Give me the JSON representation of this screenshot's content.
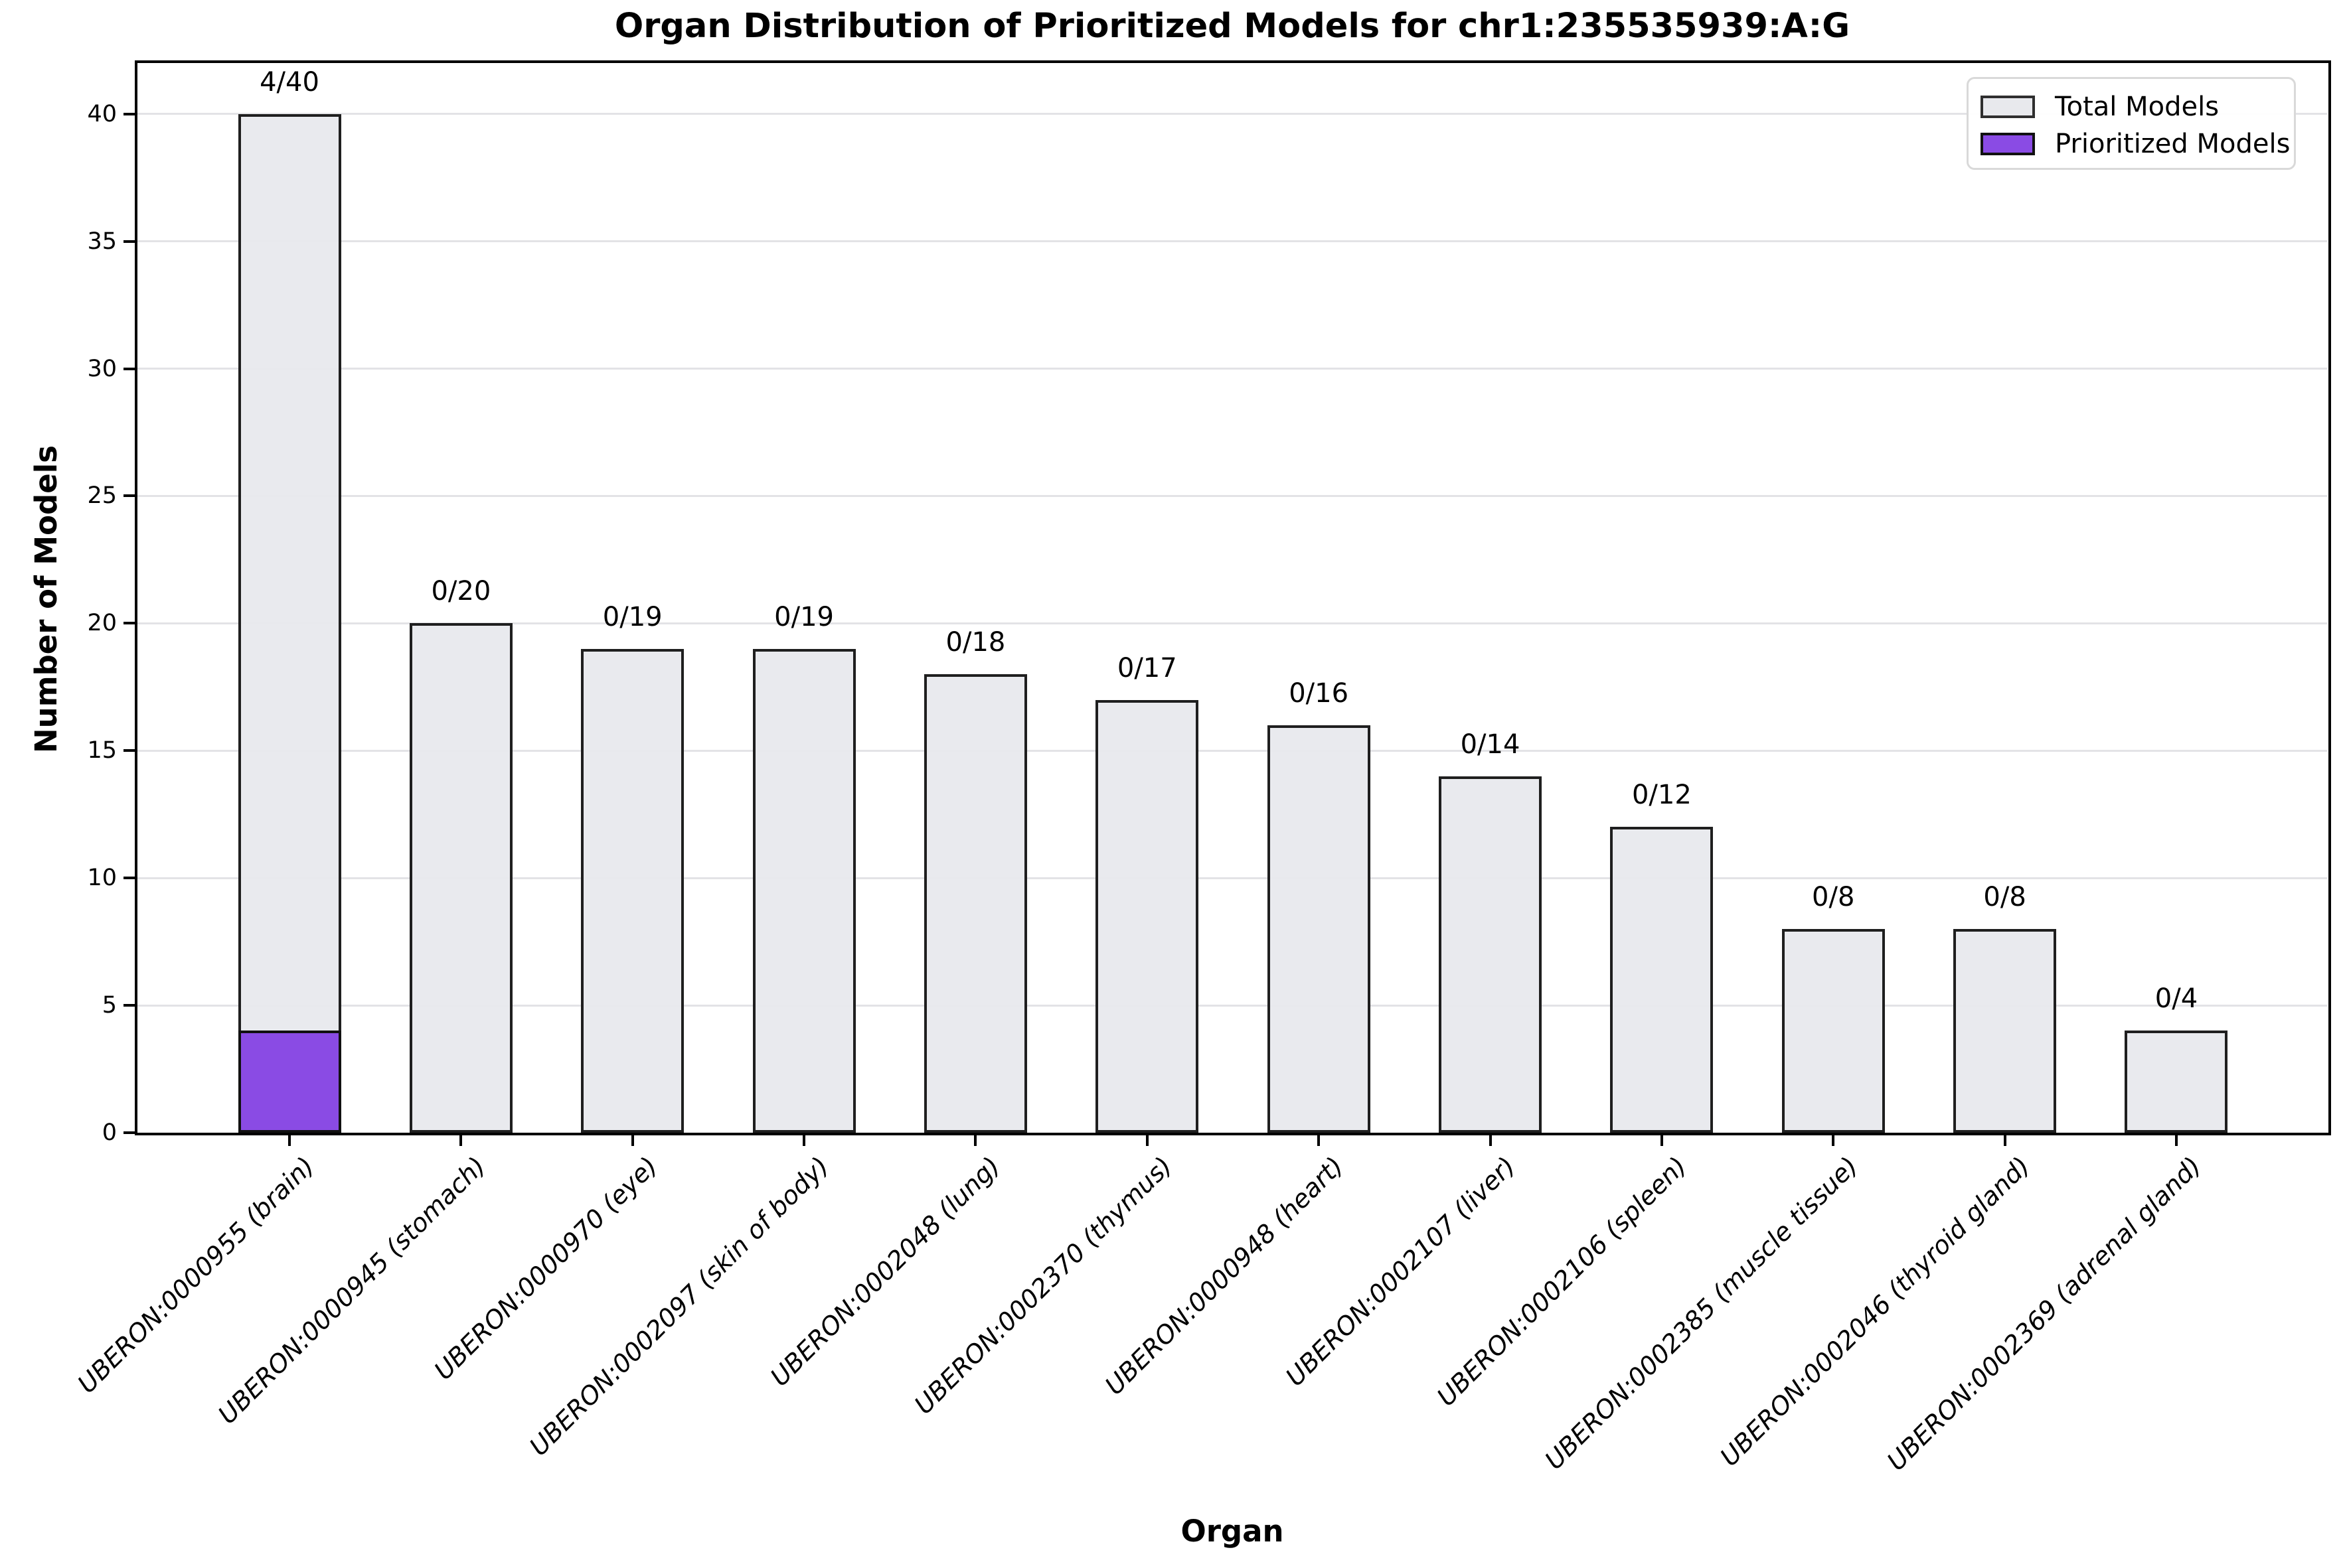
{
  "chart_data": {
    "type": "bar",
    "title": "Organ Distribution of Prioritized Models for chr1:235535939:A:G",
    "xlabel": "Organ",
    "ylabel": "Number of Models",
    "ylim": [
      0,
      42
    ],
    "yticks": [
      0,
      5,
      10,
      15,
      20,
      25,
      30,
      35,
      40
    ],
    "grid": "horizontal-only",
    "categories": [
      "UBERON:0000955 (brain)",
      "UBERON:0000945 (stomach)",
      "UBERON:0000970 (eye)",
      "UBERON:0002097 (skin of body)",
      "UBERON:0002048 (lung)",
      "UBERON:0002370 (thymus)",
      "UBERON:0000948 (heart)",
      "UBERON:0002107 (liver)",
      "UBERON:0002106 (spleen)",
      "UBERON:0002385 (muscle tissue)",
      "UBERON:0002046 (thyroid gland)",
      "UBERON:0002369 (adrenal gland)"
    ],
    "series": [
      {
        "name": "Total Models",
        "values": [
          40,
          20,
          19,
          19,
          18,
          17,
          16,
          14,
          12,
          8,
          8,
          4
        ]
      },
      {
        "name": "Prioritized Models",
        "values": [
          4,
          0,
          0,
          0,
          0,
          0,
          0,
          0,
          0,
          0,
          0,
          0
        ]
      }
    ],
    "bar_labels": [
      "4/40",
      "0/20",
      "0/19",
      "0/19",
      "0/18",
      "0/17",
      "0/16",
      "0/14",
      "0/12",
      "0/8",
      "0/8",
      "0/4"
    ],
    "legend": {
      "position": "upper right",
      "entries": [
        {
          "label": "Total Models",
          "color": "#e8e9ed",
          "edge": "#2f2f2f"
        },
        {
          "label": "Prioritized Models",
          "color": "#8a4be4",
          "edge": "#111111"
        }
      ]
    },
    "colors": {
      "total_fill": "#e8e9ed",
      "total_edge": "#1f1f1f",
      "prioritized_fill": "#8a4be4",
      "grid": "#e3e3e6",
      "axes": "#000000",
      "background": "#ffffff"
    }
  }
}
